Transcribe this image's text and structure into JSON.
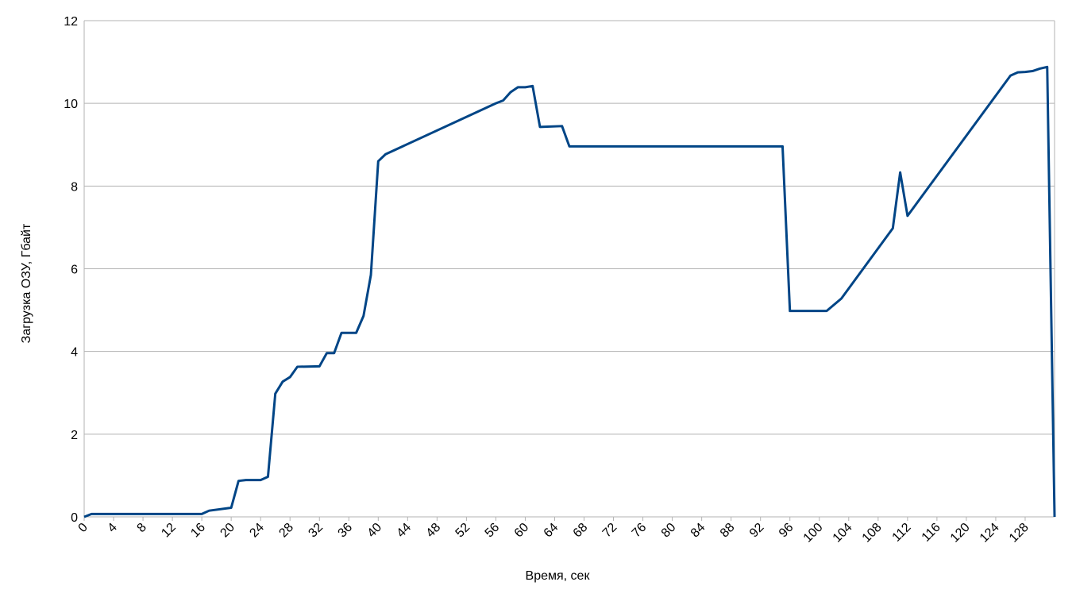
{
  "chart_data": {
    "type": "line",
    "x_label": "Время, сек",
    "y_label": "Загрузка ОЗУ, Гбайт",
    "x": [
      0,
      1,
      16,
      17,
      20,
      21,
      22,
      24,
      25,
      26,
      27,
      28,
      29,
      32,
      33,
      34,
      35,
      37,
      38,
      39,
      40,
      41,
      56,
      57,
      58,
      59,
      60,
      61,
      62,
      65,
      66,
      95,
      96,
      101,
      103,
      110,
      111,
      112,
      126,
      127,
      128,
      129,
      130,
      131,
      132
    ],
    "series": [
      {
        "name": "Загрузка ОЗУ",
        "color": "#004586",
        "values": [
          0,
          0.07,
          0.07,
          0.15,
          0.22,
          0.87,
          0.89,
          0.89,
          0.97,
          2.98,
          3.27,
          3.38,
          3.63,
          3.64,
          3.96,
          3.96,
          4.45,
          4.45,
          4.86,
          5.85,
          8.6,
          8.77,
          10.0,
          10.07,
          10.27,
          10.39,
          10.39,
          10.42,
          9.43,
          9.45,
          8.96,
          8.96,
          4.98,
          4.98,
          5.28,
          6.98,
          8.33,
          7.28,
          10.67,
          10.75,
          10.76,
          10.78,
          10.84,
          10.88,
          0
        ]
      }
    ],
    "xlim": [
      0,
      132
    ],
    "xticks": [
      0,
      4,
      8,
      12,
      16,
      20,
      24,
      28,
      32,
      36,
      40,
      44,
      48,
      52,
      56,
      60,
      64,
      68,
      72,
      76,
      80,
      84,
      88,
      92,
      96,
      100,
      104,
      108,
      112,
      116,
      120,
      124,
      128
    ],
    "ylim": [
      0,
      12
    ],
    "yticks": [
      0,
      2,
      4,
      6,
      8,
      10,
      12
    ],
    "grid": true
  }
}
